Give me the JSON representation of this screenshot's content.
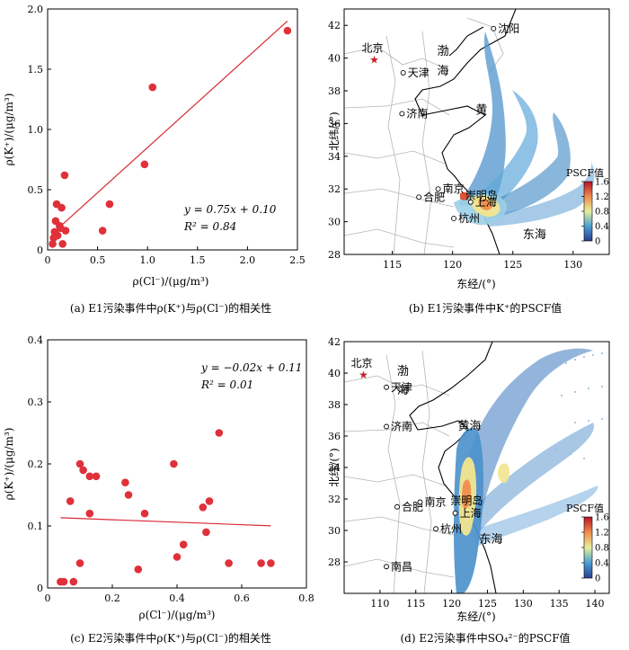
{
  "chart_data": [
    {
      "type": "scatter",
      "caption": "(a)  E1污染事件中ρ(K⁺)与ρ(Cl⁻)的相关性",
      "xlabel": "ρ(Cl⁻)/(μg/m³)",
      "ylabel": "ρ(K⁺)/(μg/m³)",
      "xlim": [
        0,
        2.5
      ],
      "ylim": [
        0,
        2.0
      ],
      "xticks": [
        "0",
        "0.5",
        "1.0",
        "1.5",
        "2.0",
        "2.5"
      ],
      "yticks": [
        "0",
        "0.5",
        "1.0",
        "1.5",
        "2.0"
      ],
      "equation": "y = 0.75x + 0.10",
      "r2": "R² = 0.84",
      "fit": {
        "slope": 0.75,
        "intercept": 0.1,
        "x_range": [
          0.05,
          2.4
        ]
      },
      "marker_color": "#e0303a",
      "line_color": "#d62a35",
      "points": [
        {
          "x": 0.05,
          "y": 0.05
        },
        {
          "x": 0.06,
          "y": 0.1
        },
        {
          "x": 0.07,
          "y": 0.15
        },
        {
          "x": 0.08,
          "y": 0.24
        },
        {
          "x": 0.09,
          "y": 0.38
        },
        {
          "x": 0.1,
          "y": 0.12
        },
        {
          "x": 0.12,
          "y": 0.2
        },
        {
          "x": 0.13,
          "y": 0.18
        },
        {
          "x": 0.14,
          "y": 0.35
        },
        {
          "x": 0.15,
          "y": 0.05
        },
        {
          "x": 0.17,
          "y": 0.62
        },
        {
          "x": 0.18,
          "y": 0.16
        },
        {
          "x": 0.55,
          "y": 0.16
        },
        {
          "x": 0.62,
          "y": 0.38
        },
        {
          "x": 0.97,
          "y": 0.71
        },
        {
          "x": 1.05,
          "y": 1.35
        },
        {
          "x": 2.4,
          "y": 1.82
        }
      ]
    },
    {
      "type": "scatter",
      "caption": "(c)  E2污染事件中ρ(K⁺)与ρ(Cl⁻)的相关性",
      "xlabel": "ρ(Cl⁻)/(μg/m³)",
      "ylabel": "ρ(K⁺)/(μg/m³)",
      "xlim": [
        0,
        0.8
      ],
      "ylim": [
        0,
        0.4
      ],
      "xticks": [
        "0",
        "0.2",
        "0.4",
        "0.6",
        "0.8"
      ],
      "yticks": [
        "0",
        "0.1",
        "0.2",
        "0.3",
        "0.4"
      ],
      "equation": "y = −0.02x + 0.11",
      "r2": "R² = 0.01",
      "fit": {
        "slope": -0.02,
        "intercept": 0.114,
        "x_range": [
          0.04,
          0.69
        ]
      },
      "marker_color": "#e0303a",
      "line_color": "#d62a35",
      "points": [
        {
          "x": 0.04,
          "y": 0.01
        },
        {
          "x": 0.05,
          "y": 0.01
        },
        {
          "x": 0.08,
          "y": 0.01
        },
        {
          "x": 0.07,
          "y": 0.14
        },
        {
          "x": 0.1,
          "y": 0.04
        },
        {
          "x": 0.1,
          "y": 0.2
        },
        {
          "x": 0.11,
          "y": 0.19
        },
        {
          "x": 0.13,
          "y": 0.18
        },
        {
          "x": 0.13,
          "y": 0.12
        },
        {
          "x": 0.15,
          "y": 0.18
        },
        {
          "x": 0.24,
          "y": 0.17
        },
        {
          "x": 0.25,
          "y": 0.15
        },
        {
          "x": 0.28,
          "y": 0.03
        },
        {
          "x": 0.3,
          "y": 0.12
        },
        {
          "x": 0.39,
          "y": 0.2
        },
        {
          "x": 0.4,
          "y": 0.05
        },
        {
          "x": 0.42,
          "y": 0.07
        },
        {
          "x": 0.48,
          "y": 0.13
        },
        {
          "x": 0.49,
          "y": 0.09
        },
        {
          "x": 0.5,
          "y": 0.14
        },
        {
          "x": 0.53,
          "y": 0.25
        },
        {
          "x": 0.56,
          "y": 0.04
        },
        {
          "x": 0.66,
          "y": 0.04
        },
        {
          "x": 0.69,
          "y": 0.04
        }
      ]
    }
  ],
  "maps": [
    {
      "caption": "(b)  E1污染事件中K⁺的PSCF值",
      "xlabel": "东经/(°)",
      "ylabel": "北纬/(°)",
      "lon_range": [
        111,
        133
      ],
      "lat_range": [
        28,
        43
      ],
      "xticks": [
        "115",
        "120",
        "125",
        "130"
      ],
      "yticks": [
        "28",
        "30",
        "32",
        "34",
        "36",
        "38",
        "40",
        "42"
      ],
      "cities": [
        {
          "name": "沈阳",
          "lon": 123.4,
          "lat": 41.8,
          "marker": "circle"
        },
        {
          "name": "北京",
          "lon": 113.5,
          "lat": 39.9,
          "marker": "star"
        },
        {
          "name": "天津",
          "lon": 115.9,
          "lat": 39.1,
          "marker": "circle"
        },
        {
          "name": "济南",
          "lon": 115.8,
          "lat": 36.6,
          "marker": "circle"
        },
        {
          "name": "合肥",
          "lon": 117.2,
          "lat": 31.5,
          "marker": "circle"
        },
        {
          "name": "南京",
          "lon": 118.8,
          "lat": 32.0,
          "marker": "circle"
        },
        {
          "name": "崇明岛",
          "lon": 121.5,
          "lat": 31.6,
          "marker": "none"
        },
        {
          "name": "上海",
          "lon": 121.5,
          "lat": 31.2,
          "marker": "circle"
        },
        {
          "name": "杭州",
          "lon": 120.1,
          "lat": 30.2,
          "marker": "circle"
        }
      ],
      "seas": [
        {
          "name": "渤",
          "lon": 119.2,
          "lat": 40.2
        },
        {
          "name": "海",
          "lon": 119.2,
          "lat": 39.0
        },
        {
          "name": "黄",
          "lon": 122.4,
          "lat": 36.6
        },
        {
          "name": "东海",
          "lon": 126.8,
          "lat": 29.0
        }
      ],
      "colorbar": {
        "title": "PSCF值",
        "ticks": [
          "0",
          "0.4",
          "0.8",
          "1.2",
          "1.6"
        ],
        "min": 0,
        "max": 1.6
      }
    },
    {
      "caption": "(d)  E2污染事件中SO₄²⁻的PSCF值",
      "xlabel": "东经/(°)",
      "ylabel": "北纬/(°)",
      "lon_range": [
        105,
        142
      ],
      "lat_range": [
        26,
        42
      ],
      "xticks": [
        "110",
        "115",
        "120",
        "125",
        "130",
        "135",
        "140"
      ],
      "yticks": [
        "28",
        "30",
        "32",
        "34",
        "36",
        "38",
        "40",
        "42"
      ],
      "cities": [
        {
          "name": "北京",
          "lon": 107.7,
          "lat": 39.9,
          "marker": "star"
        },
        {
          "name": "天津",
          "lon": 110.9,
          "lat": 39.1,
          "marker": "circle"
        },
        {
          "name": "济南",
          "lon": 110.9,
          "lat": 36.6,
          "marker": "circle"
        },
        {
          "name": "合肥",
          "lon": 112.4,
          "lat": 31.5,
          "marker": "circle"
        },
        {
          "name": "南京",
          "lon": 115.6,
          "lat": 31.8,
          "marker": "circle"
        },
        {
          "name": "崇明岛",
          "lon": 120.6,
          "lat": 31.9,
          "marker": "none"
        },
        {
          "name": "上海",
          "lon": 120.5,
          "lat": 31.1,
          "marker": "circle"
        },
        {
          "name": "杭州",
          "lon": 117.8,
          "lat": 30.1,
          "marker": "circle"
        },
        {
          "name": "南昌",
          "lon": 110.9,
          "lat": 27.7,
          "marker": "circle"
        }
      ],
      "seas": [
        {
          "name": "渤",
          "lon": 113.2,
          "lat": 39.9
        },
        {
          "name": "海",
          "lon": 113.2,
          "lat": 38.7
        },
        {
          "name": "黄海",
          "lon": 122.5,
          "lat": 36.4
        },
        {
          "name": "东海",
          "lon": 125.5,
          "lat": 29.2
        }
      ],
      "colorbar": {
        "title": "PSCF值",
        "ticks": [
          "0",
          "0.4",
          "0.8",
          "1.2",
          "1.6"
        ],
        "min": 0,
        "max": 1.6
      }
    }
  ]
}
